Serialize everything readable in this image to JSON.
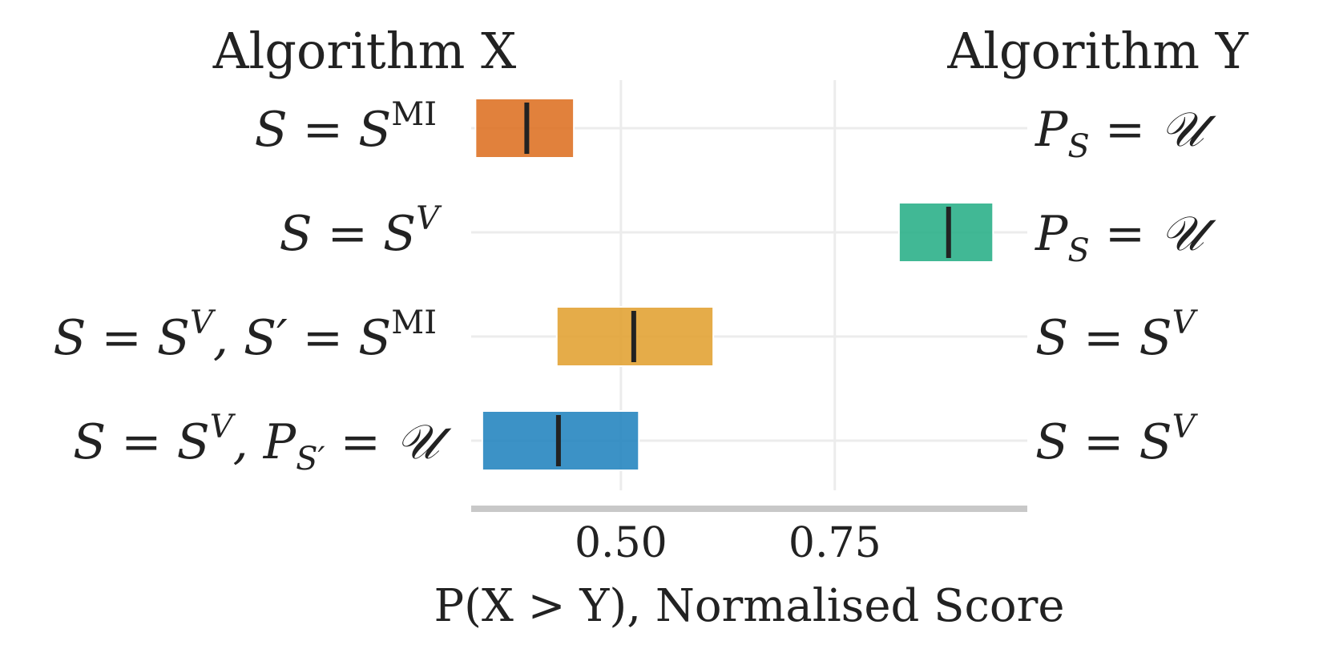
{
  "chart_data": {
    "type": "interval",
    "title": "",
    "left_header": "Algorithm X",
    "right_header": "Algorithm Y",
    "xlabel": "P(X > Y), Normalised Score",
    "xlim": [
      0.325,
      0.975
    ],
    "xticks": [
      0.5,
      0.75
    ],
    "xtick_labels": [
      "0.50",
      "0.75"
    ],
    "grid": true,
    "rows": [
      {
        "algorithm_x_label": "S = S^MI",
        "algorithm_y_label": "P_S = 𝒰",
        "low": 0.33,
        "high": 0.445,
        "point": 0.39,
        "color": "#DD6F21"
      },
      {
        "algorithm_x_label": "S = S^V",
        "algorithm_y_label": "P_S = 𝒰",
        "low": 0.825,
        "high": 0.935,
        "point": 0.883,
        "color": "#27AE86"
      },
      {
        "algorithm_x_label": "S = S^V, S′ = S^MI",
        "algorithm_y_label": "S = S^V",
        "low": 0.425,
        "high": 0.608,
        "point": 0.515,
        "color": "#E1A030"
      },
      {
        "algorithm_x_label": "S = S^V, P_S′ = 𝒰",
        "algorithm_y_label": "S = S^V",
        "low": 0.338,
        "high": 0.521,
        "point": 0.427,
        "color": "#2183BE"
      }
    ]
  }
}
